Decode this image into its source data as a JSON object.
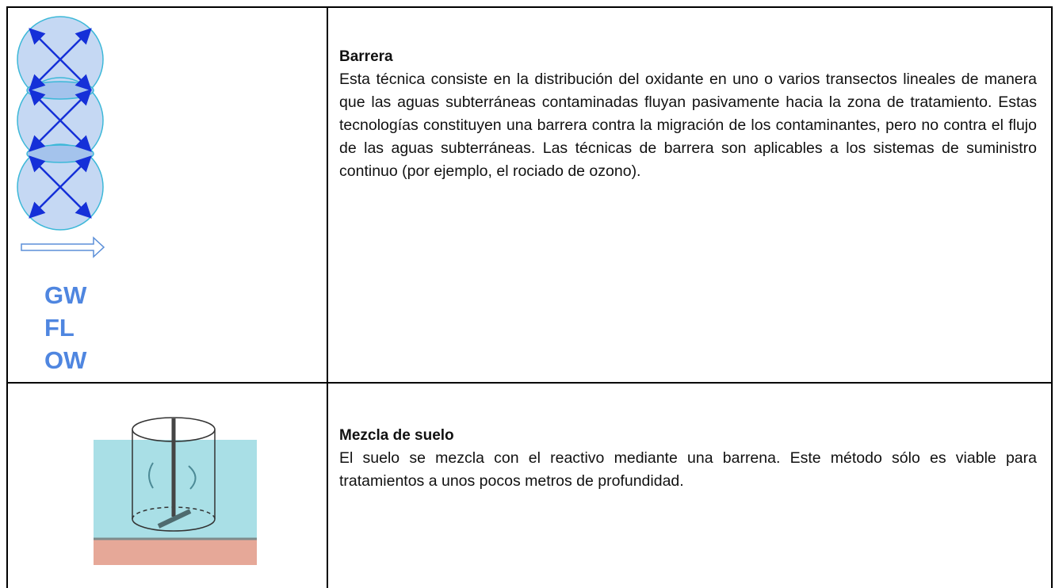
{
  "table": {
    "rows": [
      {
        "title": "Barrera",
        "body": "Esta técnica consiste en la distribución del oxidante en uno o varios transectos lineales de manera que las aguas subterráneas contaminadas fluyan pasivamente hacia la zona de tratamiento. Estas tecnologías constituyen una barrera contra la migración de los contaminantes, pero no contra el flujo de las aguas subterráneas. Las técnicas de barrera son aplicables a los sistemas de suministro continuo (por ejemplo, el rociado de ozono).",
        "labels": [
          "GW",
          "FL",
          "OW"
        ]
      },
      {
        "title": "Mezcla de suelo",
        "body": "El suelo se mezcla con el reactivo mediante una barrena. Este método sólo es viable para tratamientos a unos pocos metros de profundidad."
      }
    ]
  }
}
